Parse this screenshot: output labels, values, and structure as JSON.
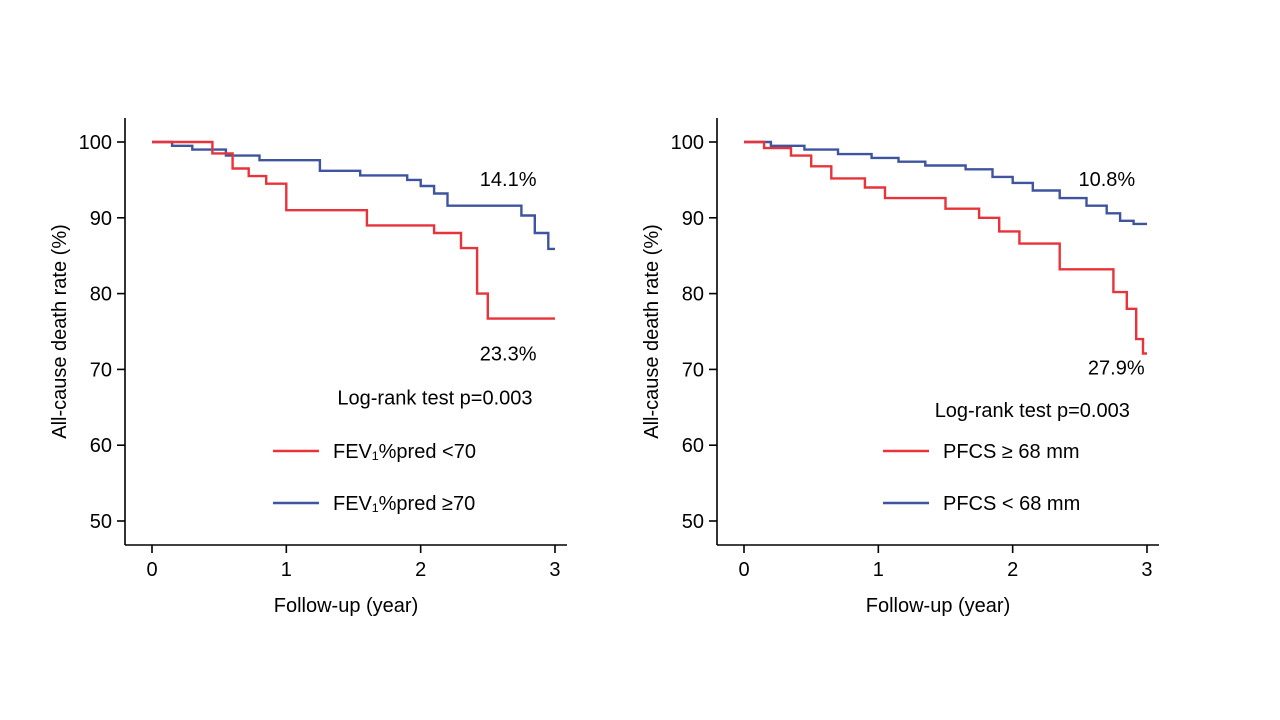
{
  "figure": {
    "background": "#ffffff",
    "text_color": "#000000",
    "axis_color": "#000000"
  },
  "colors": {
    "red": "#e8333a",
    "blue": "#3e549f"
  },
  "chart_data": [
    {
      "type": "line",
      "subtype": "kaplan-meier-step",
      "panel": "left",
      "xlabel": "Follow-up (year)",
      "ylabel": "All-cause death rate (%)",
      "xlim": [
        0,
        3
      ],
      "ylim": [
        50,
        100
      ],
      "xticks": [
        0,
        1,
        2,
        3
      ],
      "yticks": [
        100,
        90,
        80,
        70,
        60,
        50
      ],
      "grid": false,
      "legend_position": "lower-center-inside",
      "series": [
        {
          "name": "FEV₁%pred <70",
          "color": "#e8333a",
          "points": [
            [
              0,
              100
            ],
            [
              0.45,
              98.5
            ],
            [
              0.6,
              96.5
            ],
            [
              0.72,
              95.5
            ],
            [
              0.85,
              94.5
            ],
            [
              1.0,
              91.0
            ],
            [
              1.6,
              89.0
            ],
            [
              2.1,
              88.0
            ],
            [
              2.3,
              86.0
            ],
            [
              2.42,
              80.0
            ],
            [
              2.5,
              76.7
            ],
            [
              3,
              76.7
            ]
          ]
        },
        {
          "name": "FEV₁%pred ≥70",
          "color": "#3e549f",
          "points": [
            [
              0,
              100
            ],
            [
              0.15,
              99.5
            ],
            [
              0.3,
              99.0
            ],
            [
              0.55,
              98.2
            ],
            [
              0.8,
              97.6
            ],
            [
              1.25,
              96.2
            ],
            [
              1.55,
              95.6
            ],
            [
              1.9,
              95.0
            ],
            [
              2.0,
              94.2
            ],
            [
              2.1,
              93.2
            ],
            [
              2.2,
              91.6
            ],
            [
              2.75,
              90.3
            ],
            [
              2.85,
              88.0
            ],
            [
              2.95,
              85.9
            ],
            [
              3,
              85.9
            ]
          ]
        }
      ],
      "annotations": [
        {
          "text": "14.1%",
          "x": 2.44,
          "y": 94.2
        },
        {
          "text": "23.3%",
          "x": 2.44,
          "y": 71.2
        },
        {
          "text": "Log-rank test p=0.003",
          "x": 1.38,
          "y": 65.4
        }
      ]
    },
    {
      "type": "line",
      "subtype": "kaplan-meier-step",
      "panel": "right",
      "xlabel": "Follow-up (year)",
      "ylabel": "All-cause death rate (%)",
      "xlim": [
        0,
        3
      ],
      "ylim": [
        50,
        100
      ],
      "xticks": [
        0,
        1,
        2,
        3
      ],
      "yticks": [
        100,
        90,
        80,
        70,
        60,
        50
      ],
      "grid": false,
      "legend_position": "lower-center-inside",
      "series": [
        {
          "name": "PFCS ≥ 68 mm",
          "color": "#e8333a",
          "points": [
            [
              0,
              100
            ],
            [
              0.15,
              99.2
            ],
            [
              0.35,
              98.2
            ],
            [
              0.5,
              96.8
            ],
            [
              0.65,
              95.2
            ],
            [
              0.9,
              94.0
            ],
            [
              1.05,
              92.6
            ],
            [
              1.5,
              91.2
            ],
            [
              1.75,
              90.0
            ],
            [
              1.9,
              88.2
            ],
            [
              2.05,
              86.6
            ],
            [
              2.35,
              83.2
            ],
            [
              2.75,
              80.2
            ],
            [
              2.85,
              78.0
            ],
            [
              2.92,
              74.0
            ],
            [
              2.97,
              72.1
            ],
            [
              3,
              72.1
            ]
          ]
        },
        {
          "name": "PFCS < 68 mm",
          "color": "#3e549f",
          "points": [
            [
              0,
              100
            ],
            [
              0.2,
              99.5
            ],
            [
              0.45,
              99.0
            ],
            [
              0.7,
              98.4
            ],
            [
              0.95,
              97.9
            ],
            [
              1.15,
              97.4
            ],
            [
              1.35,
              96.9
            ],
            [
              1.65,
              96.4
            ],
            [
              1.85,
              95.4
            ],
            [
              2.0,
              94.6
            ],
            [
              2.15,
              93.6
            ],
            [
              2.35,
              92.6
            ],
            [
              2.55,
              91.6
            ],
            [
              2.7,
              90.6
            ],
            [
              2.8,
              89.6
            ],
            [
              2.9,
              89.2
            ],
            [
              3,
              89.2
            ]
          ]
        }
      ],
      "annotations": [
        {
          "text": "10.8%",
          "x": 2.49,
          "y": 94.2
        },
        {
          "text": "27.9%",
          "x": 2.56,
          "y": 69.3
        },
        {
          "text": "Log-rank test p=0.003",
          "x": 1.42,
          "y": 63.7
        }
      ]
    }
  ]
}
